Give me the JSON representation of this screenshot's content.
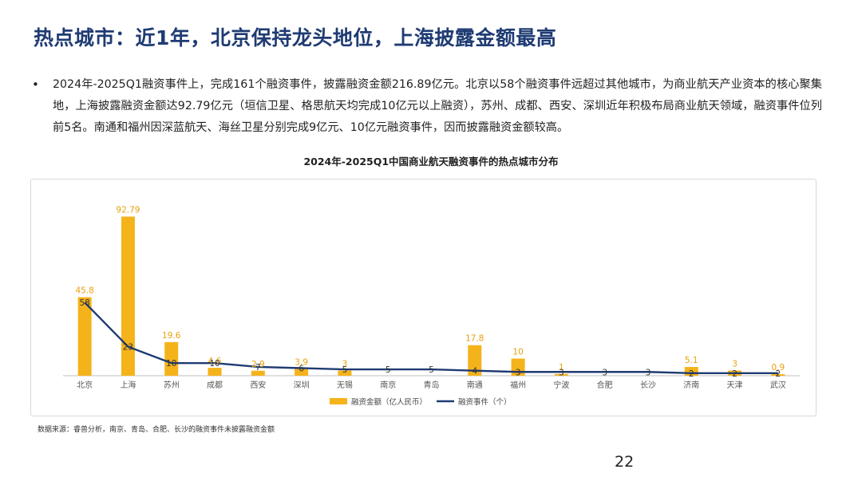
{
  "slide": {
    "title": "热点城市：近1年，北京保持龙头地位，上海披露金额最高",
    "bullet_symbol": "•",
    "bullet_text": "2024年-2025Q1融资事件上，完成161个融资事件，披露融资金额216.89亿元。北京以58个融资事件远超过其他城市，为商业航天产业资本的核心聚集地，上海披露融资金额达92.79亿元（垣信卫星、格思航天均完成10亿元以上融资），苏州、成都、西安、深圳近年积极布局商业航天领域，融资事件位列前5名。南通和福州因深蓝航天、海丝卫星分别完成9亿元、10亿元融资事件，因而披露融资金额较高。",
    "source_note": "数据来源：睿兽分析，南京、青岛、合肥、长沙的融资事件未披露融资金额",
    "page_number": "22"
  },
  "chart_data": {
    "type": "bar",
    "title": "2024年-2025Q1中国商业航天融资事件的热点城市分布",
    "categories": [
      "北京",
      "上海",
      "苏州",
      "成都",
      "西安",
      "深圳",
      "无锡",
      "南京",
      "青岛",
      "南通",
      "福州",
      "宁波",
      "合肥",
      "长沙",
      "济南",
      "天津",
      "武汉"
    ],
    "series": [
      {
        "name": "融资金额（亿人民币）",
        "type": "bar",
        "color": "#f5b31b",
        "values": [
          45.8,
          92.79,
          19.6,
          4.6,
          2.9,
          3.9,
          3,
          null,
          null,
          17.8,
          10,
          1,
          null,
          null,
          5.1,
          3,
          0.9
        ],
        "labels": [
          "45.8",
          "92.79",
          "19.6",
          "4.6",
          "2.9",
          "3.9",
          "3",
          "",
          "",
          "17.8",
          "10",
          "1",
          "",
          "",
          "5.1",
          "3",
          "0.9"
        ]
      },
      {
        "name": "融资事件（个）",
        "type": "line",
        "color": "#1f3b73",
        "values": [
          58,
          23,
          10,
          10,
          7,
          6,
          5,
          5,
          5,
          4,
          3,
          3,
          3,
          3,
          2,
          2,
          2
        ],
        "labels": [
          "58",
          "23",
          "10",
          "10",
          "7",
          "6",
          "5",
          "5",
          "5",
          "4",
          "3",
          "3",
          "3",
          "3",
          "2",
          "2",
          "2"
        ]
      }
    ],
    "ylim_bar": [
      0,
      100
    ],
    "ylim_line": [
      0,
      120
    ],
    "legend_position": "bottom",
    "grid": false
  }
}
